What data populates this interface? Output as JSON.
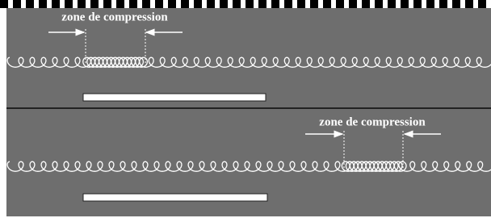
{
  "panels": [
    {
      "label": "zone de compression"
    },
    {
      "label": "zone de compression"
    }
  ]
}
